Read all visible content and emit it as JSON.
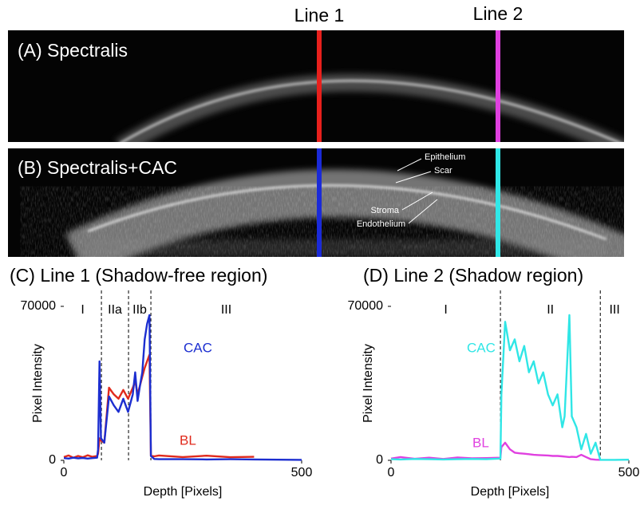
{
  "figure": {
    "line_labels": [
      "Line 1",
      "Line 2"
    ],
    "panels": [
      "(A) Spectralis",
      "(B) Spectralis+CAC"
    ],
    "annotations": [
      "Epithelium",
      "Scar",
      "Stroma",
      "Endothelium"
    ]
  },
  "chart_data": [
    {
      "type": "line",
      "title": "(C) Line 1 (Shadow-free region)",
      "xlabel": "Depth [Pixels]",
      "ylabel": "Pixel Intensity",
      "xlim": [
        0,
        500
      ],
      "xticks": [
        0,
        500
      ],
      "ylim": [
        0,
        70000
      ],
      "yticks": [
        0,
        70000
      ],
      "regions": [
        "I",
        "IIa",
        "IIb",
        "III"
      ],
      "dividers": [
        79,
        136,
        183
      ],
      "x": [
        0,
        10,
        20,
        30,
        40,
        50,
        60,
        70,
        72,
        75,
        78,
        85,
        95,
        105,
        115,
        125,
        135,
        145,
        150,
        155,
        160,
        165,
        170,
        175,
        180,
        183,
        190,
        200,
        250,
        300,
        350,
        400,
        450,
        500
      ],
      "series": [
        {
          "name": "BL",
          "color": "#e02a1c",
          "values": [
            1500,
            2200,
            1200,
            2000,
            1400,
            2300,
            1600,
            2000,
            3000,
            10000,
            9000,
            8000,
            33000,
            30000,
            28000,
            32000,
            28000,
            33000,
            36000,
            30000,
            34000,
            38000,
            42000,
            45000,
            48000,
            2000,
            1800,
            2200,
            1500,
            2100,
            1400,
            1600,
            null,
            null
          ]
        },
        {
          "name": "CAC",
          "color": "#1c2ed0",
          "values": [
            1000,
            800,
            1200,
            900,
            1100,
            800,
            1000,
            1200,
            5000,
            45000,
            10000,
            8000,
            29000,
            25000,
            22000,
            28000,
            22000,
            30000,
            40000,
            27000,
            34000,
            40000,
            55000,
            62000,
            66000,
            2000,
            600,
            500,
            500,
            400,
            500,
            400,
            300,
            200
          ]
        }
      ]
    },
    {
      "type": "line",
      "title": "(D) Line 2 (Shadow region)",
      "xlabel": "Depth [Pixels]",
      "ylabel": "Pixel Intensity",
      "xlim": [
        0,
        500
      ],
      "xticks": [
        0,
        500
      ],
      "ylim": [
        0,
        70000
      ],
      "yticks": [
        0,
        70000
      ],
      "regions": [
        "I",
        "II",
        "III"
      ],
      "dividers": [
        230,
        440
      ],
      "x": [
        0,
        20,
        50,
        80,
        110,
        140,
        170,
        200,
        230,
        232,
        240,
        250,
        260,
        270,
        280,
        290,
        300,
        310,
        320,
        330,
        340,
        350,
        360,
        365,
        375,
        380,
        390,
        400,
        410,
        420,
        430,
        440,
        470,
        500
      ],
      "series": [
        {
          "name": "BL",
          "color": "#e040e0",
          "values": [
            800,
            1500,
            700,
            1200,
            600,
            1300,
            900,
            1000,
            1200,
            6000,
            8000,
            5000,
            3500,
            3200,
            3000,
            2800,
            2500,
            2400,
            2300,
            2200,
            2000,
            2000,
            1800,
            1700,
            1500,
            1600,
            1500,
            2500,
            1500,
            500,
            300,
            200,
            null,
            null
          ]
        },
        {
          "name": "CAC",
          "color": "#30e6e6",
          "values": [
            500,
            400,
            600,
            500,
            400,
            500,
            600,
            500,
            800,
            30000,
            63000,
            50000,
            55000,
            45000,
            52000,
            40000,
            45000,
            35000,
            40000,
            30000,
            25000,
            30000,
            15000,
            20000,
            66000,
            20000,
            15000,
            5000,
            12000,
            3000,
            8000,
            200,
            200,
            300
          ]
        }
      ]
    }
  ]
}
